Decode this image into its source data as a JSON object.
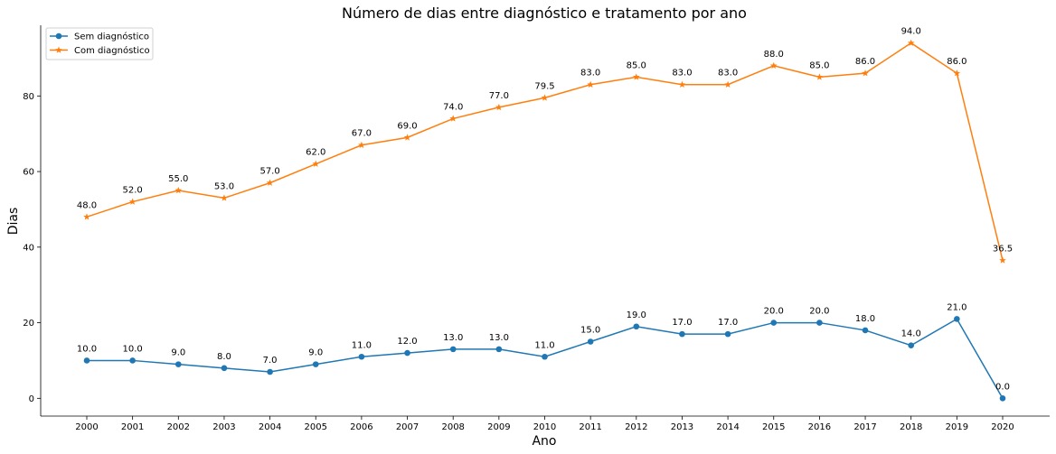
{
  "chart_data": {
    "type": "line",
    "title": "Número de dias entre diagnóstico e tratamento por ano",
    "xlabel": "Ano",
    "ylabel": "Dias",
    "x": [
      "2000",
      "2001",
      "2002",
      "2003",
      "2004",
      "2005",
      "2006",
      "2007",
      "2008",
      "2009",
      "2010",
      "2011",
      "2012",
      "2013",
      "2014",
      "2015",
      "2016",
      "2017",
      "2018",
      "2019",
      "2020"
    ],
    "yticks": [
      0,
      20,
      40,
      60,
      80
    ],
    "ylim": [
      -4.7,
      98.7
    ],
    "grid": false,
    "legend": "top-left",
    "series": [
      {
        "name": "Sem diagnóstico",
        "color": "#1f77b4",
        "marker": "circle",
        "values": [
          10.0,
          10.0,
          9.0,
          8.0,
          7.0,
          9.0,
          11.0,
          12.0,
          13.0,
          13.0,
          11.0,
          15.0,
          19.0,
          17.0,
          17.0,
          20.0,
          20.0,
          18.0,
          14.0,
          21.0,
          0.0
        ],
        "labels": [
          "10.0",
          "10.0",
          "9.0",
          "8.0",
          "7.0",
          "9.0",
          "11.0",
          "12.0",
          "13.0",
          "13.0",
          "11.0",
          "15.0",
          "19.0",
          "17.0",
          "17.0",
          "20.0",
          "20.0",
          "18.0",
          "14.0",
          "21.0",
          "0.0"
        ]
      },
      {
        "name": "Com diagnóstico",
        "color": "#ff7f0e",
        "marker": "star",
        "values": [
          48.0,
          52.0,
          55.0,
          53.0,
          57.0,
          62.0,
          67.0,
          69.0,
          74.0,
          77.0,
          79.5,
          83.0,
          85.0,
          83.0,
          83.0,
          88.0,
          85.0,
          86.0,
          94.0,
          86.0,
          36.5
        ],
        "labels": [
          "48.0",
          "52.0",
          "55.0",
          "53.0",
          "57.0",
          "62.0",
          "67.0",
          "69.0",
          "74.0",
          "77.0",
          "79.5",
          "83.0",
          "85.0",
          "83.0",
          "83.0",
          "88.0",
          "85.0",
          "86.0",
          "94.0",
          "86.0",
          "36.5"
        ]
      }
    ]
  }
}
